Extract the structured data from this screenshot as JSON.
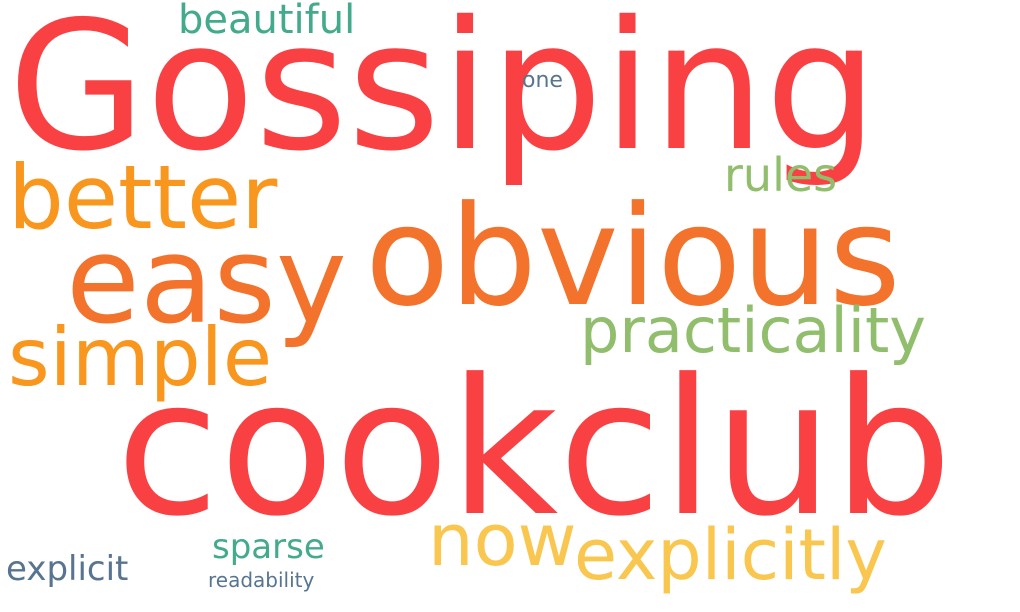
{
  "colors": {
    "red": "#f94144",
    "orange": "#f3722c",
    "amber": "#f8961e",
    "yellow": "#f9c74f",
    "green": "#90be6d",
    "teal": "#43aa8b",
    "slate": "#577590",
    "background": "#ffffff"
  },
  "words": {
    "gossiping": "Gossiping",
    "cookclub": "cookclub",
    "obvious": "obvious",
    "easy": "easy",
    "better": "better",
    "simple": "simple",
    "practicality": "practicality",
    "explicitly": "explicitly",
    "now": "now",
    "rules": "rules",
    "beautiful": "beautiful",
    "sparse": "sparse",
    "explicit": "explicit",
    "one": "one",
    "readability": "readability"
  }
}
